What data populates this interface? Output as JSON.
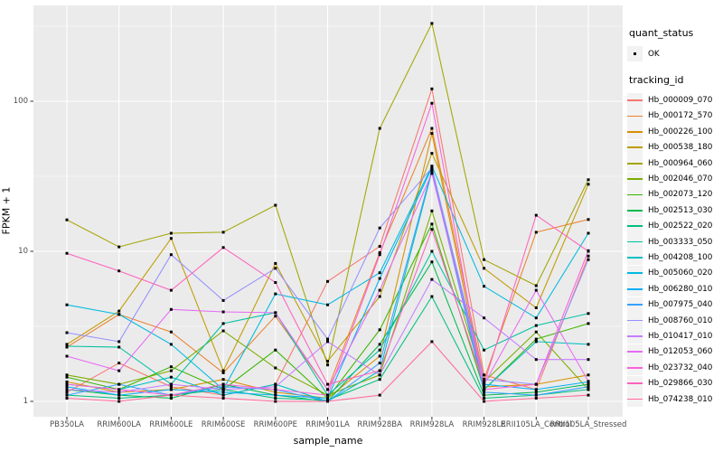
{
  "figure": {
    "x_axis_title": "sample_name",
    "y_axis_title": "FPKM + 1"
  },
  "legend": {
    "quant_status_title": "quant_status",
    "quant_status_items": [
      {
        "label": "OK"
      }
    ],
    "tracking_id_title": "tracking_id"
  },
  "chart_data": {
    "type": "line",
    "title": "",
    "xlabel": "sample_name",
    "ylabel": "FPKM + 1",
    "y_scale": "log10",
    "ylim": [
      1,
      430
    ],
    "y_ticks": [
      1,
      10,
      100
    ],
    "y_tick_labels": [
      "1",
      "10",
      "100"
    ],
    "y_minor_ticks": [
      3.162,
      31.62,
      316.2
    ],
    "grid": "on",
    "legend_position": "right",
    "panel_bg": "#EBEBEB",
    "grid_color": "#FFFFFF",
    "point_color": "#000000",
    "quant_status": "OK",
    "categories": [
      "PB350LA",
      "RRIM600LA",
      "RRIM600LE",
      "RRIM600SE",
      "RRIM600PE",
      "RRIM901LA",
      "RRIM928BA",
      "RRIM928LA",
      "RRIM928LE",
      "RRII105LA_Control",
      "RRII105LA_Stressed"
    ],
    "series": [
      {
        "name": "Hb_000009_070",
        "color": "#F8766D",
        "values": [
          1.15,
          1.8,
          1.25,
          1.1,
          1.3,
          6.3,
          10.8,
          121,
          1.5,
          1.2,
          9.3
        ]
      },
      {
        "name": "Hb_000172_570",
        "color": "#EA8331",
        "values": [
          2.3,
          3.8,
          2.9,
          1.55,
          3.7,
          1.2,
          9.8,
          66,
          1.4,
          13.4,
          16.3
        ]
      },
      {
        "name": "Hb_000226_100",
        "color": "#D89000",
        "values": [
          1.35,
          1.15,
          1.2,
          1.4,
          1.15,
          1.05,
          2.0,
          61,
          1.25,
          1.3,
          1.5
        ]
      },
      {
        "name": "Hb_000538_180",
        "color": "#C09B00",
        "values": [
          2.4,
          4.0,
          12.2,
          1.6,
          8.3,
          1.85,
          5.0,
          45,
          7.7,
          4.2,
          28
        ]
      },
      {
        "name": "Hb_000964_060",
        "color": "#A3A500",
        "values": [
          16.2,
          10.7,
          13.2,
          13.4,
          20.3,
          1.75,
          66,
          330,
          8.8,
          5.9,
          30
        ]
      },
      {
        "name": "Hb_002046_070",
        "color": "#7CAE00",
        "values": [
          1.5,
          1.3,
          1.6,
          2.95,
          1.67,
          1.1,
          1.5,
          18.6,
          1.35,
          2.9,
          1.2
        ]
      },
      {
        "name": "Hb_002073_120",
        "color": "#39B600",
        "values": [
          1.45,
          1.2,
          1.7,
          1.2,
          2.2,
          1.05,
          3.0,
          15.2,
          1.2,
          2.6,
          3.3
        ]
      },
      {
        "name": "Hb_002513_030",
        "color": "#00BB4E",
        "values": [
          1.2,
          1.1,
          1.05,
          1.3,
          1.1,
          1.0,
          2.4,
          8.5,
          1.1,
          1.15,
          1.3
        ]
      },
      {
        "name": "Hb_002522_020",
        "color": "#00BF7D",
        "values": [
          1.1,
          1.05,
          1.1,
          1.2,
          1.05,
          1.02,
          1.4,
          5.0,
          1.05,
          1.1,
          1.2
        ]
      },
      {
        "name": "Hb_003333_050",
        "color": "#00C1A3",
        "values": [
          2.33,
          2.3,
          1.3,
          3.3,
          3.9,
          1.1,
          2.2,
          10,
          2.2,
          3.2,
          3.85
        ]
      },
      {
        "name": "Hb_004208_100",
        "color": "#00BFC4",
        "values": [
          1.3,
          1.2,
          1.45,
          1.1,
          1.3,
          1.0,
          1.6,
          34,
          1.2,
          2.5,
          2.4
        ]
      },
      {
        "name": "Hb_005060_020",
        "color": "#00BAE0",
        "values": [
          4.4,
          3.8,
          2.4,
          1.2,
          5.2,
          4.4,
          7.2,
          37,
          5.85,
          3.6,
          13.2
        ]
      },
      {
        "name": "Hb_006280_010",
        "color": "#00B0F6",
        "values": [
          1.25,
          1.1,
          1.2,
          1.15,
          1.1,
          1.05,
          6.6,
          36,
          1.3,
          1.2,
          1.35
        ]
      },
      {
        "name": "Hb_007975_040",
        "color": "#35A2FF",
        "values": [
          1.1,
          1.3,
          1.1,
          1.25,
          1.2,
          1.0,
          1.8,
          35,
          1.15,
          1.1,
          1.25
        ]
      },
      {
        "name": "Hb_008760_010",
        "color": "#9590FF",
        "values": [
          2.87,
          2.5,
          9.5,
          4.7,
          7.7,
          2.6,
          14.3,
          36,
          1.4,
          1.3,
          8.8
        ]
      },
      {
        "name": "Hb_010417_010",
        "color": "#C77CFF",
        "values": [
          1.2,
          1.15,
          1.3,
          1.2,
          1.25,
          2.5,
          1.5,
          6.5,
          3.6,
          1.9,
          1.9
        ]
      },
      {
        "name": "Hb_012053_060",
        "color": "#E76BF3",
        "values": [
          2.0,
          1.6,
          4.1,
          3.95,
          3.9,
          1.2,
          5.5,
          33,
          1.3,
          5.5,
          1.36
        ]
      },
      {
        "name": "Hb_023732_040",
        "color": "#FA62DB",
        "values": [
          1.3,
          1.2,
          1.1,
          1.3,
          1.2,
          1.1,
          9.5,
          97,
          1.2,
          1.3,
          10.1
        ]
      },
      {
        "name": "Hb_029866_030",
        "color": "#FF62BC",
        "values": [
          9.7,
          7.4,
          5.5,
          10.6,
          6.2,
          1.3,
          1.6,
          14,
          1.3,
          17.4,
          10
        ]
      },
      {
        "name": "Hb_074238_010",
        "color": "#FF6A98",
        "values": [
          1.05,
          1.0,
          1.1,
          1.05,
          1.0,
          1.0,
          1.1,
          2.5,
          1.0,
          1.05,
          1.1
        ]
      }
    ]
  }
}
